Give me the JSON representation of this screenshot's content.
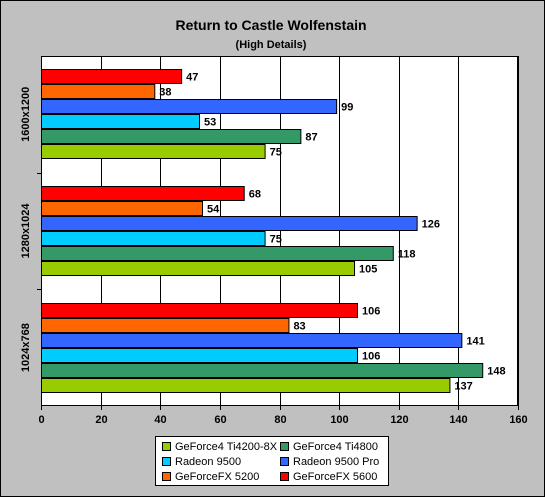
{
  "chart_data": {
    "type": "bar",
    "orientation": "horizontal",
    "title": "Return to Castle Wolfenstain",
    "subtitle": "(High Details)",
    "categories": [
      "1600x1200",
      "1280x1024",
      "1024x768"
    ],
    "series": [
      {
        "name": "GeForce4 Ti4200-8X",
        "color": "#99cc00",
        "values": [
          75,
          105,
          137
        ]
      },
      {
        "name": "GeForce4 Ti4800",
        "color": "#339966",
        "values": [
          87,
          118,
          148
        ]
      },
      {
        "name": "Radeon 9500",
        "color": "#00ccff",
        "values": [
          53,
          75,
          106
        ]
      },
      {
        "name": "Radeon 9500 Pro",
        "color": "#3366ff",
        "values": [
          99,
          126,
          141
        ]
      },
      {
        "name": "GeForceFX 5200",
        "color": "#ff6600",
        "values": [
          38,
          54,
          83
        ]
      },
      {
        "name": "GeForceFX 5600",
        "color": "#ff0000",
        "values": [
          47,
          68,
          106
        ]
      }
    ],
    "xlim": [
      0,
      160
    ],
    "xticks": [
      "0",
      "20",
      "40",
      "60",
      "80",
      "100",
      "120",
      "140",
      "160"
    ],
    "grid": true,
    "legend_position": "bottom",
    "plot_background": "#ffffff",
    "page_background": "#c0c0c0",
    "grid_color": "#000000"
  }
}
